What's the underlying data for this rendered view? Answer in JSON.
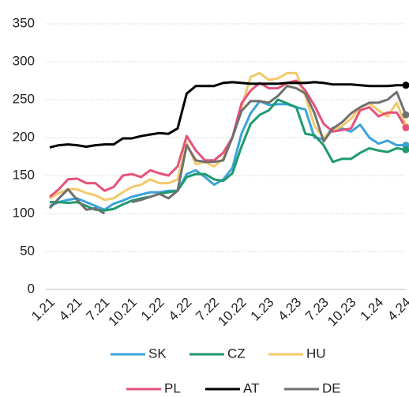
{
  "chart_data": {
    "type": "line",
    "categories": [
      "1.21",
      null,
      null,
      "4.21",
      null,
      null,
      "7.21",
      null,
      null,
      "10.21",
      null,
      null,
      "1.22",
      null,
      null,
      "4.22",
      null,
      null,
      "7.22",
      null,
      null,
      "10.22",
      null,
      null,
      "1.23",
      null,
      null,
      "4.23",
      null,
      null,
      "7.23",
      null,
      null,
      "10.23",
      null,
      null,
      "1.24",
      null,
      null,
      "4.24"
    ],
    "ylim": [
      0,
      350
    ],
    "yticks": [
      0,
      50,
      100,
      150,
      200,
      250,
      300,
      350
    ],
    "grid": true,
    "legend": "bottom",
    "end_markers": true,
    "series": [
      {
        "name": "SK",
        "color": "#3ba3dc",
        "values": [
          110,
          115,
          118,
          120,
          115,
          110,
          105,
          113,
          117,
          122,
          125,
          128,
          128,
          130,
          130,
          152,
          157,
          148,
          138,
          145,
          160,
          205,
          232,
          248,
          243,
          244,
          244,
          240,
          237,
          200,
          198,
          213,
          212,
          208,
          217,
          200,
          192,
          196,
          190,
          190
        ]
      },
      {
        "name": "CZ",
        "color": "#1f9a6e",
        "values": [
          115,
          115,
          114,
          115,
          110,
          105,
          104,
          106,
          112,
          117,
          120,
          122,
          126,
          128,
          130,
          148,
          152,
          152,
          145,
          143,
          153,
          188,
          218,
          230,
          236,
          250,
          245,
          240,
          205,
          203,
          190,
          168,
          172,
          172,
          180,
          186,
          183,
          181,
          186,
          184
        ]
      },
      {
        "name": "HU",
        "color": "#f3c96b",
        "values": [
          120,
          127,
          132,
          132,
          127,
          124,
          118,
          120,
          128,
          135,
          138,
          145,
          140,
          140,
          145,
          193,
          165,
          168,
          162,
          172,
          200,
          240,
          280,
          285,
          276,
          278,
          285,
          285,
          255,
          215,
          200,
          210,
          215,
          225,
          240,
          245,
          236,
          228,
          246,
          215
        ]
      },
      {
        "name": "PL",
        "color": "#e6527a",
        "values": [
          122,
          132,
          145,
          146,
          140,
          140,
          130,
          135,
          150,
          152,
          148,
          157,
          153,
          150,
          162,
          202,
          183,
          170,
          170,
          180,
          200,
          245,
          262,
          272,
          265,
          265,
          272,
          275,
          262,
          242,
          218,
          208,
          210,
          212,
          236,
          240,
          228,
          233,
          233,
          213
        ]
      },
      {
        "name": "AT",
        "color": "#000000",
        "values": [
          187,
          190,
          191,
          190,
          188,
          190,
          191,
          191,
          199,
          199,
          202,
          204,
          206,
          205,
          212,
          258,
          268,
          268,
          268,
          272,
          273,
          272,
          271,
          271,
          271,
          271,
          272,
          272,
          272,
          273,
          272,
          270,
          270,
          270,
          269,
          268,
          268,
          268,
          269,
          269
        ]
      },
      {
        "name": "DE",
        "color": "#707070",
        "values": [
          107,
          120,
          132,
          118,
          105,
          107,
          100,
          null,
          null,
          115,
          118,
          122,
          126,
          120,
          130,
          190,
          170,
          168,
          168,
          170,
          200,
          235,
          248,
          248,
          246,
          255,
          268,
          265,
          258,
          232,
          195,
          212,
          220,
          232,
          240,
          246,
          246,
          250,
          260,
          230
        ]
      }
    ]
  }
}
